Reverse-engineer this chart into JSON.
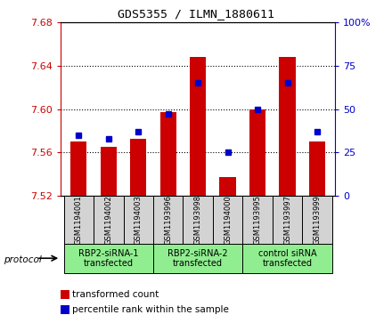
{
  "title": "GDS5355 / ILMN_1880611",
  "samples": [
    "GSM1194001",
    "GSM1194002",
    "GSM1194003",
    "GSM1193996",
    "GSM1193998",
    "GSM1194000",
    "GSM1193995",
    "GSM1193997",
    "GSM1193999"
  ],
  "transformed_counts": [
    7.57,
    7.565,
    7.572,
    7.597,
    7.648,
    7.537,
    7.6,
    7.648,
    7.57
  ],
  "percentile_ranks": [
    35,
    33,
    37,
    47,
    65,
    25,
    50,
    65,
    37
  ],
  "ylim_left": [
    7.52,
    7.68
  ],
  "ylim_right": [
    0,
    100
  ],
  "yticks_left": [
    7.52,
    7.56,
    7.6,
    7.64,
    7.68
  ],
  "yticks_right": [
    0,
    25,
    50,
    75,
    100
  ],
  "groups": [
    {
      "label": "RBP2-siRNA-1\ntransfected",
      "indices": [
        0,
        1,
        2
      ],
      "color": "#90EE90"
    },
    {
      "label": "RBP2-siRNA-2\ntransfected",
      "indices": [
        3,
        4,
        5
      ],
      "color": "#90EE90"
    },
    {
      "label": "control siRNA\ntransfected",
      "indices": [
        6,
        7,
        8
      ],
      "color": "#90EE90"
    }
  ],
  "bar_color": "#CC0000",
  "dot_color": "#0000CC",
  "bar_width": 0.55,
  "background_color": "#ffffff",
  "panel_color": "#d3d3d3",
  "left_axis_color": "#CC0000",
  "right_axis_color": "#0000CC",
  "legend_items": [
    {
      "label": "transformed count",
      "color": "#CC0000"
    },
    {
      "label": "percentile rank within the sample",
      "color": "#0000CC"
    }
  ]
}
